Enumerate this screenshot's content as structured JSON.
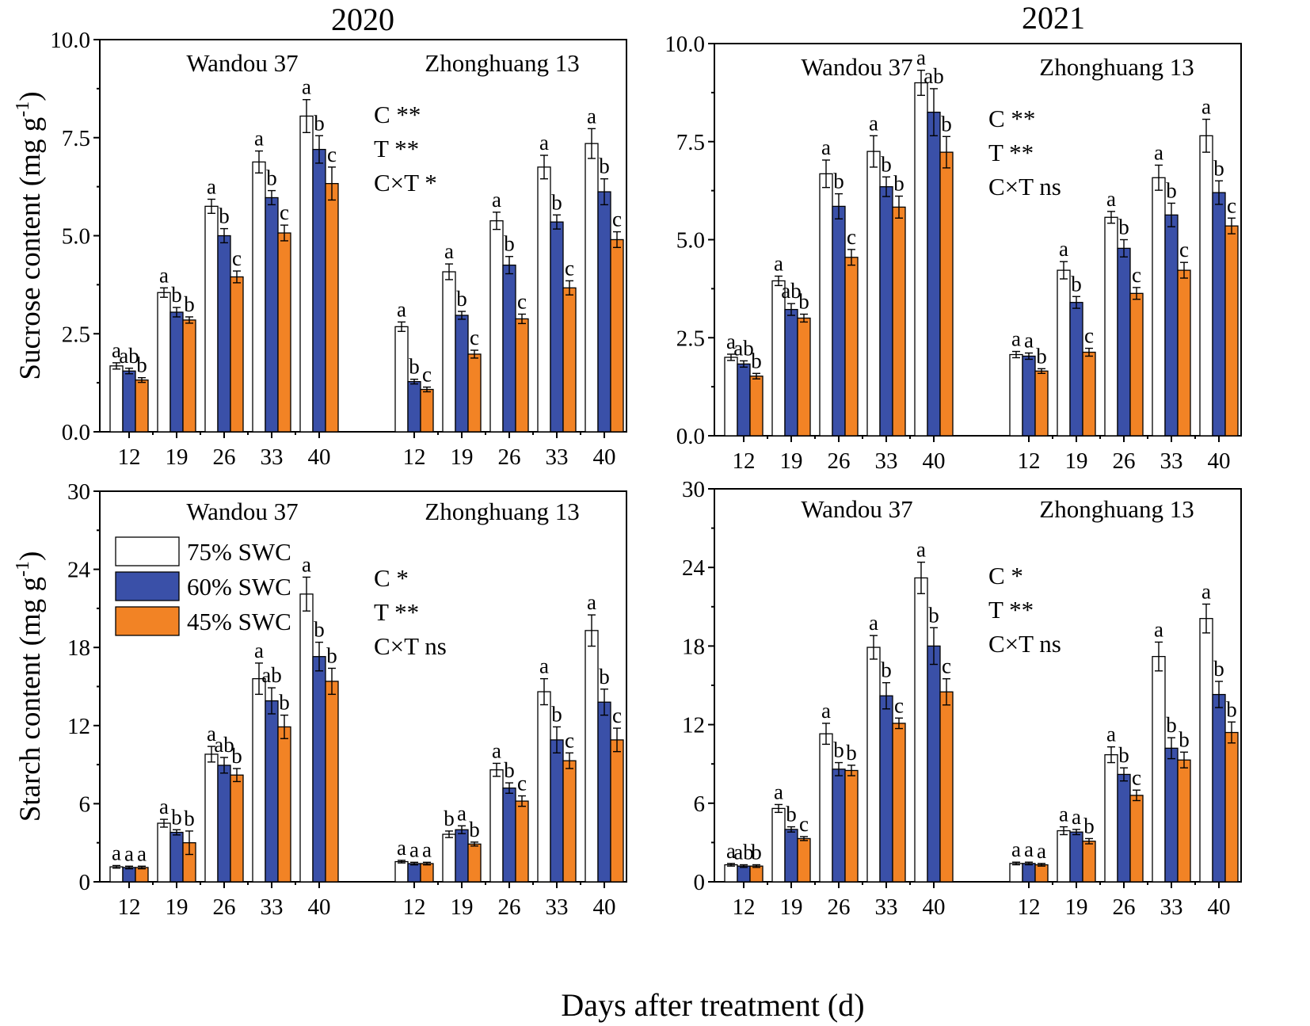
{
  "figure": {
    "xlabel": "Days after treatment (d)",
    "colors": {
      "75% SWC": "#ffffff",
      "60% SWC": "#3a50a8",
      "45% SWC": "#f28325"
    },
    "legend": [
      "75% SWC",
      "60% SWC",
      "45% SWC"
    ]
  },
  "chart_data": [
    {
      "type": "bar",
      "panel": "sucrose-2020",
      "title": "2020",
      "ylabel": "Sucrose content (mg g-1)",
      "ylim": [
        0,
        10
      ],
      "yticks": [
        "0.0",
        "2.5",
        "5.0",
        "7.5",
        "10.0"
      ],
      "groups": [
        "Wandou 37",
        "Zhonghuang 13"
      ],
      "categories": [
        "12",
        "19",
        "26",
        "33",
        "40"
      ],
      "stats": [
        "C **",
        "T **",
        "C×T *"
      ],
      "series": [
        {
          "name": "75% SWC",
          "values": [
            [
              1.68,
              3.55,
              5.75,
              6.88,
              8.05
            ],
            [
              2.68,
              4.08,
              5.38,
              6.75,
              7.35
            ]
          ],
          "errors": [
            [
              0.08,
              0.12,
              0.18,
              0.28,
              0.42
            ],
            [
              0.12,
              0.2,
              0.22,
              0.3,
              0.38
            ]
          ],
          "labels": [
            [
              "a",
              "a",
              "a",
              "a",
              "a"
            ],
            [
              "a",
              "a",
              "a",
              "a",
              "a"
            ]
          ]
        },
        {
          "name": "60% SWC",
          "values": [
            [
              1.55,
              3.05,
              5.0,
              5.97,
              7.2
            ],
            [
              1.28,
              2.97,
              4.25,
              5.35,
              6.12
            ]
          ],
          "errors": [
            [
              0.07,
              0.12,
              0.18,
              0.18,
              0.35
            ],
            [
              0.06,
              0.1,
              0.22,
              0.18,
              0.33
            ]
          ],
          "labels": [
            [
              "ab",
              "b",
              "b",
              "b",
              "b"
            ],
            [
              "b",
              "b",
              "b",
              "b",
              "b"
            ]
          ]
        },
        {
          "name": "45% SWC",
          "values": [
            [
              1.32,
              2.85,
              3.95,
              5.07,
              6.33
            ],
            [
              1.08,
              1.98,
              2.88,
              3.67,
              4.9
            ]
          ],
          "errors": [
            [
              0.06,
              0.08,
              0.15,
              0.2,
              0.42
            ],
            [
              0.06,
              0.1,
              0.12,
              0.18,
              0.2
            ]
          ],
          "labels": [
            [
              "b",
              "b",
              "c",
              "c",
              "c"
            ],
            [
              "c",
              "c",
              "c",
              "c",
              "c"
            ]
          ]
        }
      ]
    },
    {
      "type": "bar",
      "panel": "sucrose-2021",
      "title": "2021",
      "ylabel": "",
      "ylim": [
        0,
        10
      ],
      "yticks": [
        "0.0",
        "2.5",
        "5.0",
        "7.5",
        "10.0"
      ],
      "groups": [
        "Wandou 37",
        "Zhonghuang 13"
      ],
      "categories": [
        "12",
        "19",
        "26",
        "33",
        "40"
      ],
      "stats": [
        "C **",
        "T **",
        "C×T ns"
      ],
      "series": [
        {
          "name": "75% SWC",
          "values": [
            [
              2.0,
              3.95,
              6.68,
              7.25,
              9.0
            ],
            [
              2.07,
              4.22,
              5.57,
              6.58,
              7.65
            ]
          ],
          "errors": [
            [
              0.08,
              0.12,
              0.35,
              0.4,
              0.32
            ],
            [
              0.08,
              0.22,
              0.15,
              0.32,
              0.42
            ]
          ],
          "labels": [
            [
              "a",
              "a",
              "a",
              "a",
              "a"
            ],
            [
              "a",
              "a",
              "a",
              "a",
              "a"
            ]
          ]
        },
        {
          "name": "60% SWC",
          "values": [
            [
              1.83,
              3.22,
              5.85,
              6.35,
              8.25
            ],
            [
              2.03,
              3.4,
              4.78,
              5.63,
              6.2
            ]
          ],
          "errors": [
            [
              0.08,
              0.15,
              0.32,
              0.25,
              0.6
            ],
            [
              0.08,
              0.15,
              0.22,
              0.3,
              0.3
            ]
          ],
          "labels": [
            [
              "ab",
              "ab",
              "b",
              "b",
              "ab"
            ],
            [
              "a",
              "b",
              "b",
              "b",
              "b"
            ]
          ]
        },
        {
          "name": "45% SWC",
          "values": [
            [
              1.52,
              3.0,
              4.55,
              5.83,
              7.23
            ],
            [
              1.65,
              2.13,
              3.63,
              4.22,
              5.35
            ]
          ],
          "errors": [
            [
              0.07,
              0.1,
              0.2,
              0.28,
              0.4
            ],
            [
              0.06,
              0.1,
              0.15,
              0.2,
              0.2
            ]
          ],
          "labels": [
            [
              "b",
              "b",
              "c",
              "b",
              "b"
            ],
            [
              "b",
              "c",
              "c",
              "c",
              "c"
            ]
          ]
        }
      ]
    },
    {
      "type": "bar",
      "panel": "starch-2020",
      "title": "",
      "ylabel": "Starch content (mg g-1)",
      "ylim": [
        0,
        30
      ],
      "yticks": [
        "0",
        "6",
        "12",
        "18",
        "24",
        "30"
      ],
      "groups": [
        "Wandou 37",
        "Zhonghuang 13"
      ],
      "categories": [
        "12",
        "19",
        "26",
        "33",
        "40"
      ],
      "stats": [
        "C *",
        "T **",
        "C×T ns"
      ],
      "series": [
        {
          "name": "75% SWC",
          "values": [
            [
              1.15,
              4.5,
              9.8,
              15.6,
              22.1
            ],
            [
              1.55,
              3.65,
              8.6,
              14.6,
              19.3
            ]
          ],
          "errors": [
            [
              0.1,
              0.3,
              0.6,
              1.2,
              1.3
            ],
            [
              0.1,
              0.25,
              0.5,
              1.0,
              1.2
            ]
          ],
          "labels": [
            [
              "a",
              "a",
              "a",
              "a",
              "a"
            ],
            [
              "a",
              "b",
              "a",
              "a",
              "a"
            ]
          ]
        },
        {
          "name": "60% SWC",
          "values": [
            [
              1.1,
              3.8,
              8.95,
              13.9,
              17.3
            ],
            [
              1.4,
              4.0,
              7.2,
              10.9,
              13.8
            ]
          ],
          "errors": [
            [
              0.1,
              0.2,
              0.6,
              1.0,
              1.1
            ],
            [
              0.1,
              0.3,
              0.4,
              1.0,
              1.0
            ]
          ],
          "labels": [
            [
              "a",
              "b",
              "ab",
              "ab",
              "b"
            ],
            [
              "a",
              "a",
              "b",
              "b",
              "b"
            ]
          ]
        },
        {
          "name": "45% SWC",
          "values": [
            [
              1.1,
              3.0,
              8.2,
              11.9,
              15.4
            ],
            [
              1.4,
              2.9,
              6.2,
              9.3,
              10.9
            ]
          ],
          "errors": [
            [
              0.1,
              0.9,
              0.5,
              0.9,
              1.0
            ],
            [
              0.1,
              0.15,
              0.4,
              0.6,
              0.9
            ]
          ],
          "labels": [
            [
              "a",
              "b",
              "b",
              "b",
              "b"
            ],
            [
              "a",
              "b",
              "c",
              "c",
              "c"
            ]
          ]
        }
      ]
    },
    {
      "type": "bar",
      "panel": "starch-2021",
      "title": "",
      "ylabel": "",
      "ylim": [
        0,
        30
      ],
      "yticks": [
        "0",
        "6",
        "12",
        "18",
        "24",
        "30"
      ],
      "groups": [
        "Wandou 37",
        "Zhonghuang 13"
      ],
      "categories": [
        "12",
        "19",
        "26",
        "33",
        "40"
      ],
      "stats": [
        "C *",
        "T **",
        "C×T ns"
      ],
      "series": [
        {
          "name": "75% SWC",
          "values": [
            [
              1.3,
              5.6,
              11.3,
              17.9,
              23.2
            ],
            [
              1.4,
              3.9,
              9.7,
              17.2,
              20.1
            ]
          ],
          "errors": [
            [
              0.1,
              0.3,
              0.8,
              0.9,
              1.2
            ],
            [
              0.1,
              0.3,
              0.6,
              1.1,
              1.1
            ]
          ],
          "labels": [
            [
              "a",
              "a",
              "a",
              "a",
              "a"
            ],
            [
              "a",
              "a",
              "a",
              "a",
              "a"
            ]
          ]
        },
        {
          "name": "60% SWC",
          "values": [
            [
              1.2,
              4.0,
              8.6,
              14.2,
              18.0
            ],
            [
              1.4,
              3.8,
              8.2,
              10.2,
              14.3
            ]
          ],
          "errors": [
            [
              0.1,
              0.2,
              0.5,
              1.0,
              1.4
            ],
            [
              0.1,
              0.2,
              0.5,
              0.8,
              1.0
            ]
          ],
          "labels": [
            [
              "ab",
              "b",
              "b",
              "b",
              "b"
            ],
            [
              "a",
              "a",
              "b",
              "b",
              "b"
            ]
          ]
        },
        {
          "name": "45% SWC",
          "values": [
            [
              1.2,
              3.3,
              8.5,
              12.1,
              14.5
            ],
            [
              1.3,
              3.1,
              6.6,
              9.3,
              11.4
            ]
          ],
          "errors": [
            [
              0.1,
              0.15,
              0.4,
              0.4,
              1.0
            ],
            [
              0.1,
              0.2,
              0.4,
              0.6,
              0.8
            ]
          ],
          "labels": [
            [
              "b",
              "c",
              "b",
              "c",
              "c"
            ],
            [
              "a",
              "b",
              "c",
              "b",
              "b"
            ]
          ]
        }
      ]
    }
  ]
}
